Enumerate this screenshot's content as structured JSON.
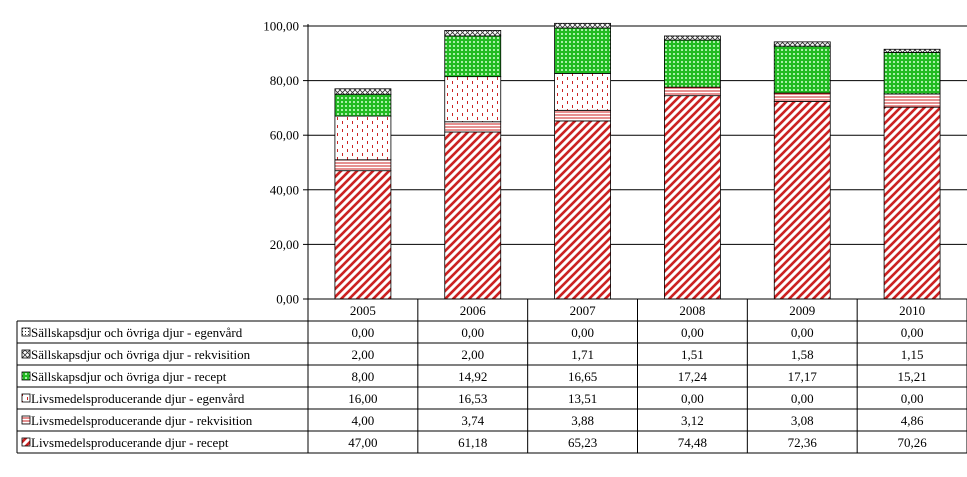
{
  "chart_data": {
    "type": "bar",
    "stacked": true,
    "categories": [
      "2005",
      "2006",
      "2007",
      "2008",
      "2009",
      "2010"
    ],
    "ylim": [
      0,
      100
    ],
    "yticks": [
      "0,00",
      "20,00",
      "40,00",
      "60,00",
      "80,00",
      "100,00"
    ],
    "ytick_values": [
      0,
      20,
      40,
      60,
      80,
      100
    ],
    "grid": true,
    "legend": "data-table-below",
    "series": [
      {
        "name": "Livsmedelsproducerande djur - recept",
        "values": [
          47.0,
          61.18,
          65.23,
          74.48,
          72.36,
          70.26
        ],
        "labels": [
          "47,00",
          "61,18",
          "65,23",
          "74,48",
          "72,36",
          "70,26"
        ],
        "color": "#cc2222",
        "pattern": "diagonal-stripes"
      },
      {
        "name": "Livsmedelsproducerande djur - rekvisition",
        "values": [
          4.0,
          3.74,
          3.88,
          3.12,
          3.08,
          4.86
        ],
        "labels": [
          "4,00",
          "3,74",
          "3,88",
          "3,12",
          "3,08",
          "4,86"
        ],
        "color": "#cc2222",
        "pattern": "horizontal-lines"
      },
      {
        "name": "Livsmedelsproducerande djur - egenvård",
        "values": [
          16.0,
          16.53,
          13.51,
          0.0,
          0.0,
          0.0
        ],
        "labels": [
          "16,00",
          "16,53",
          "13,51",
          "0,00",
          "0,00",
          "0,00"
        ],
        "color": "#cc2222",
        "pattern": "dots"
      },
      {
        "name": "Sällskapsdjur och övriga djur - recept",
        "values": [
          8.0,
          14.92,
          16.65,
          17.24,
          17.17,
          15.21
        ],
        "labels": [
          "8,00",
          "14,92",
          "16,65",
          "17,24",
          "17,17",
          "15,21"
        ],
        "color": "#22aa22",
        "pattern": "grid"
      },
      {
        "name": "Sällskapsdjur och övriga djur - rekvisition",
        "values": [
          2.0,
          2.0,
          1.71,
          1.51,
          1.58,
          1.15
        ],
        "labels": [
          "2,00",
          "2,00",
          "1,71",
          "1,51",
          "1,58",
          "1,15"
        ],
        "color": "#333333",
        "pattern": "crosshatch"
      },
      {
        "name": "Sällskapsdjur och övriga djur - egenvård",
        "values": [
          0.0,
          0.0,
          0.0,
          0.0,
          0.0,
          0.0
        ],
        "labels": [
          "0,00",
          "0,00",
          "0,00",
          "0,00",
          "0,00",
          "0,00"
        ],
        "color": "#333333",
        "pattern": "dense-dots"
      }
    ],
    "table_row_order": [
      5,
      4,
      3,
      2,
      1,
      0
    ]
  }
}
